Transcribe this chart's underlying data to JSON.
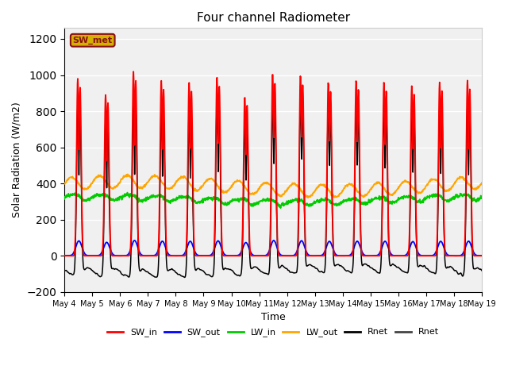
{
  "title": "Four channel Radiometer",
  "xlabel": "Time",
  "ylabel": "Solar Radiation (W/m2)",
  "ylim": [
    -200,
    1260
  ],
  "yticks": [
    -200,
    0,
    200,
    400,
    600,
    800,
    1000,
    1200
  ],
  "plot_bg": "#f0f0f0",
  "fig_bg": "#ffffff",
  "annotation_text": "SW_met",
  "annotation_bg": "#d4b000",
  "annotation_border": "#8b1010",
  "colors": {
    "SW_in": "#ff0000",
    "SW_out": "#0000ff",
    "LW_in": "#00cc00",
    "LW_out": "#ffa500",
    "Rnet_black": "#000000",
    "Rnet_dark": "#444444"
  },
  "legend_labels": [
    "SW_in",
    "SW_out",
    "LW_in",
    "LW_out",
    "Rnet",
    "Rnet"
  ],
  "num_days": 15,
  "start_day": 4,
  "end_day": 19
}
